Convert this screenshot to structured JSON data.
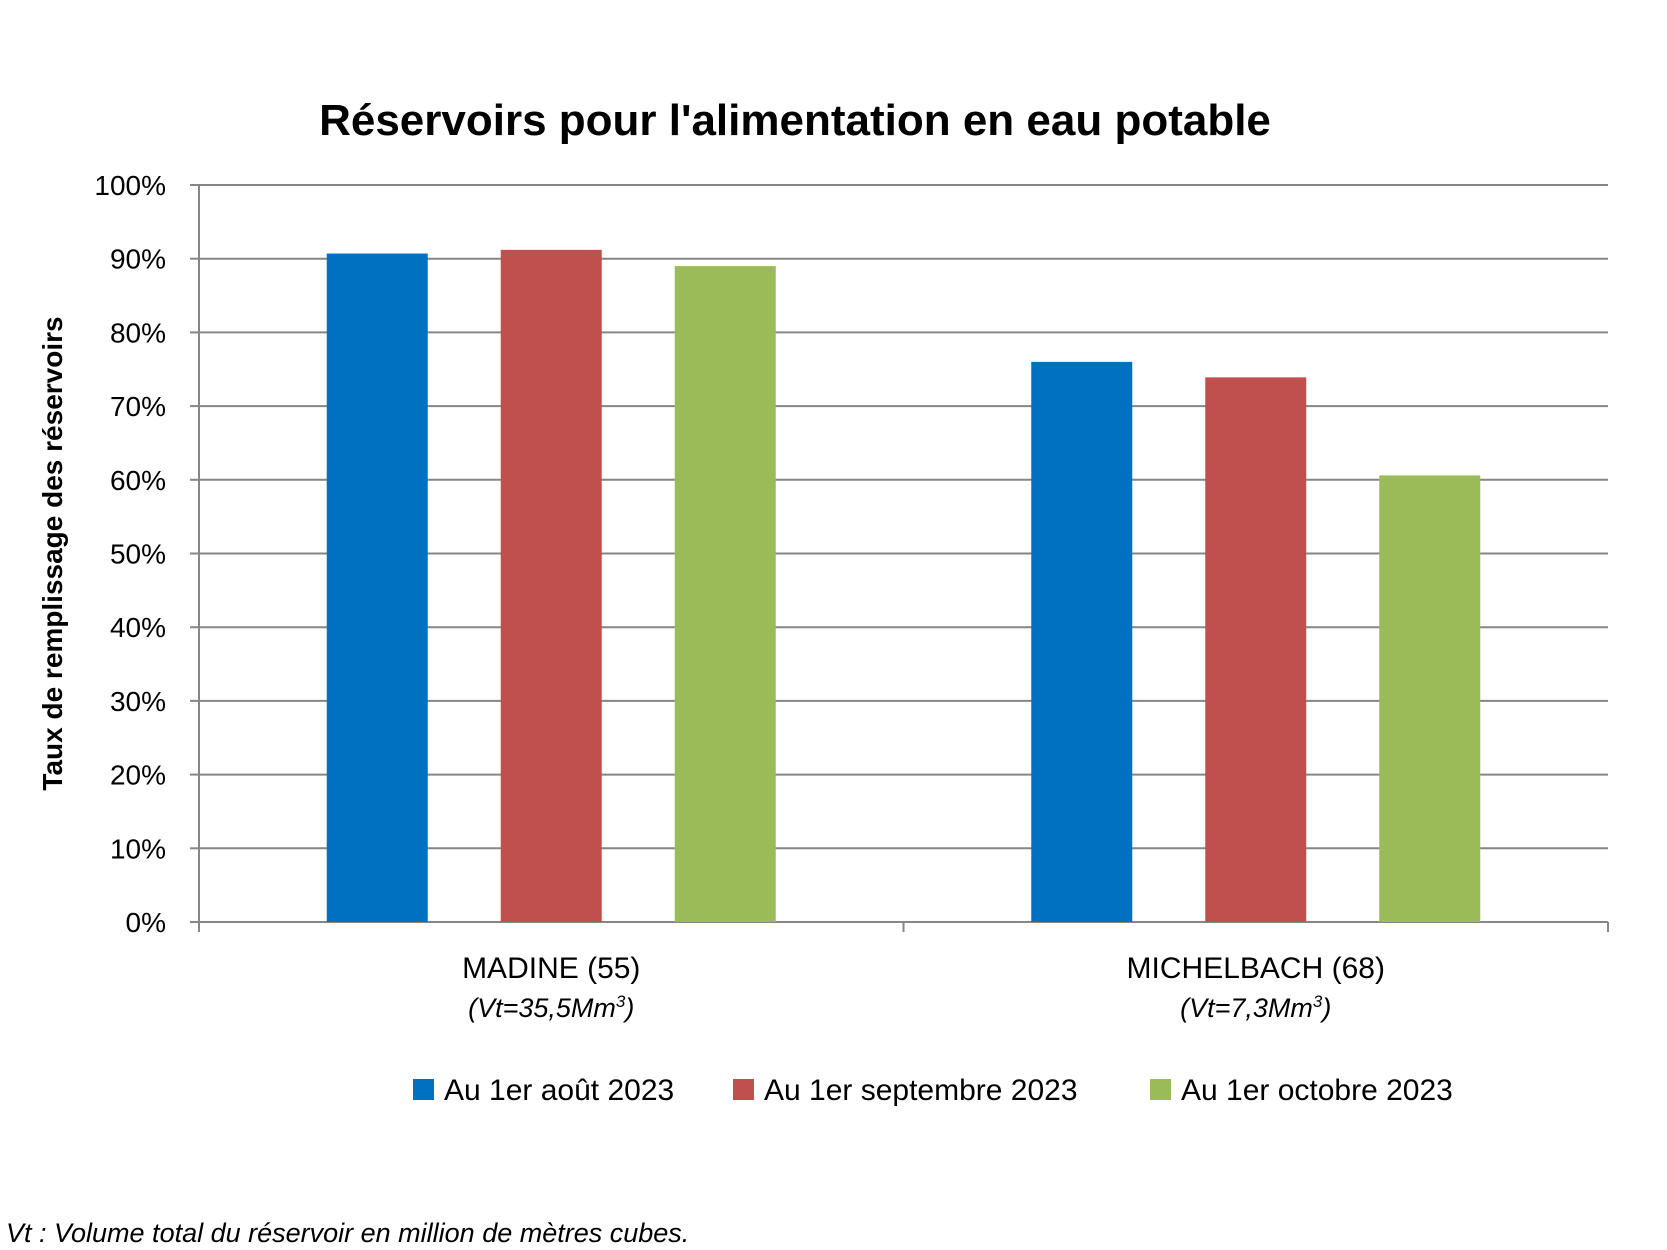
{
  "chart_data": {
    "type": "bar",
    "title": "Réservoirs pour l'alimentation en eau potable",
    "ylabel": "Taux de remplissage des réservoirs",
    "xlabel": "",
    "ylim": [
      0,
      100
    ],
    "yticks": [
      "0%",
      "10%",
      "20%",
      "30%",
      "40%",
      "50%",
      "60%",
      "70%",
      "80%",
      "90%",
      "100%"
    ],
    "categories": [
      {
        "name": "MADINE (55)",
        "sub_prefix": "(Vt=35,5Mm",
        "sub_sup": "3",
        "sub_suffix": ")"
      },
      {
        "name": "MICHELBACH (68)",
        "sub_prefix": "(Vt=7,3Mm",
        "sub_sup": "3",
        "sub_suffix": ")"
      }
    ],
    "series": [
      {
        "name": "Au 1er août 2023",
        "color": "#0070C0",
        "values": [
          90.7,
          76.0
        ]
      },
      {
        "name": "Au 1er septembre 2023",
        "color": "#C0504D",
        "values": [
          91.2,
          73.9
        ]
      },
      {
        "name": "Au 1er octobre 2023",
        "color": "#9BBB59",
        "values": [
          89.0,
          60.6
        ]
      }
    ],
    "grid": true,
    "legend_position": "bottom"
  },
  "footnote": "Vt : Volume total du réservoir en million de mètres cubes."
}
